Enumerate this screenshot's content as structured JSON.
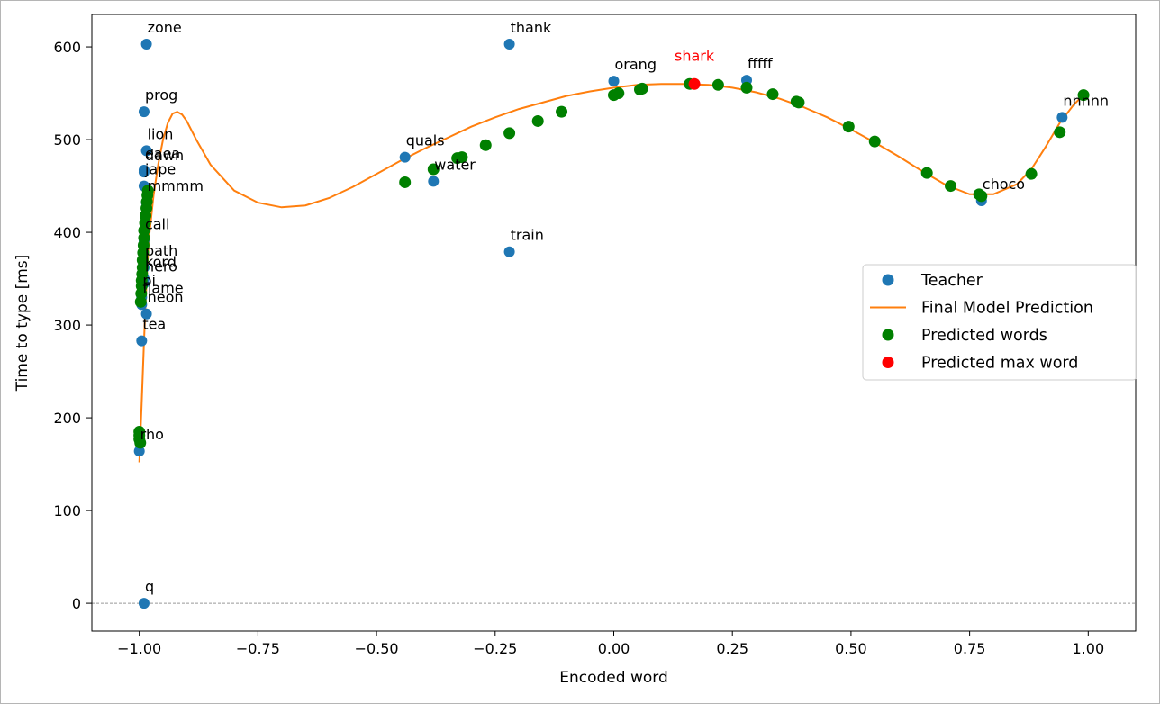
{
  "chart_data": {
    "type": "scatter",
    "title": "",
    "xlabel": "Encoded word",
    "ylabel": "Time to type [ms]",
    "xlim": [
      -1.1,
      1.1
    ],
    "ylim": [
      -30,
      635
    ],
    "xticks": [
      -1.0,
      -0.75,
      -0.5,
      -0.25,
      0.0,
      0.25,
      0.5,
      0.75,
      1.0
    ],
    "xtick_labels": [
      "−1.00",
      "−0.75",
      "−0.50",
      "−0.25",
      "0.00",
      "0.25",
      "0.50",
      "0.75",
      "1.00"
    ],
    "yticks": [
      0,
      100,
      200,
      300,
      400,
      500,
      600
    ],
    "ytick_labels": [
      "0",
      "100",
      "200",
      "300",
      "400",
      "500",
      "600"
    ],
    "colors": {
      "teacher": "#1f77b4",
      "model": "#ff7f0e",
      "predicted": "#008000",
      "max": "#ff0000",
      "axes": "#000000",
      "zero_line": "#999999"
    },
    "legend": {
      "position": "center-right",
      "entries": [
        "Teacher",
        "Final Model Prediction",
        "Predicted words",
        "Predicted max word"
      ]
    },
    "teacher": [
      {
        "x": -0.99,
        "y": 0,
        "label": "q"
      },
      {
        "x": -1.0,
        "y": 164,
        "label": "rho"
      },
      {
        "x": -0.995,
        "y": 283,
        "label": "tea"
      },
      {
        "x": -0.985,
        "y": 312,
        "label": "neon"
      },
      {
        "x": -0.995,
        "y": 322,
        "label": "flame"
      },
      {
        "x": -0.995,
        "y": 330,
        "label": "pi"
      },
      {
        "x": -0.99,
        "y": 345,
        "label": "hero"
      },
      {
        "x": -0.99,
        "y": 350,
        "label": "kord"
      },
      {
        "x": -0.99,
        "y": 362,
        "label": "path"
      },
      {
        "x": -0.99,
        "y": 391,
        "label": "call"
      },
      {
        "x": -0.985,
        "y": 432,
        "label": "mmmm"
      },
      {
        "x": -0.99,
        "y": 450,
        "label": "jape"
      },
      {
        "x": -0.99,
        "y": 465,
        "label": "dawn"
      },
      {
        "x": -0.99,
        "y": 467,
        "label": "eaea"
      },
      {
        "x": -0.985,
        "y": 488,
        "label": "lion"
      },
      {
        "x": -0.99,
        "y": 530,
        "label": "prog"
      },
      {
        "x": -0.985,
        "y": 603,
        "label": "zone"
      },
      {
        "x": -0.22,
        "y": 603,
        "label": "thank"
      },
      {
        "x": -0.44,
        "y": 481,
        "label": "quals"
      },
      {
        "x": -0.38,
        "y": 455,
        "label": "water"
      },
      {
        "x": -0.22,
        "y": 379,
        "label": "train"
      },
      {
        "x": 0.0,
        "y": 563,
        "label": "orang"
      },
      {
        "x": 0.28,
        "y": 564,
        "label": "fffff"
      },
      {
        "x": 0.775,
        "y": 434,
        "label": "choco"
      },
      {
        "x": 0.945,
        "y": 524,
        "label": "nnnnn"
      }
    ],
    "model_curve": {
      "x": [
        -1.0,
        -0.995,
        -0.99,
        -0.985,
        -0.98,
        -0.97,
        -0.96,
        -0.95,
        -0.94,
        -0.93,
        -0.92,
        -0.91,
        -0.9,
        -0.88,
        -0.85,
        -0.8,
        -0.75,
        -0.7,
        -0.65,
        -0.6,
        -0.55,
        -0.5,
        -0.45,
        -0.4,
        -0.35,
        -0.3,
        -0.25,
        -0.2,
        -0.15,
        -0.1,
        -0.05,
        0.0,
        0.05,
        0.1,
        0.15,
        0.2,
        0.25,
        0.3,
        0.35,
        0.4,
        0.45,
        0.5,
        0.55,
        0.6,
        0.65,
        0.7,
        0.75,
        0.8,
        0.85,
        0.88,
        0.91,
        0.94,
        0.97,
        0.99
      ],
      "y": [
        152,
        215,
        285,
        345,
        392,
        440,
        474,
        500,
        518,
        528,
        530,
        527,
        520,
        500,
        473,
        445,
        432,
        427,
        429,
        437,
        449,
        463,
        477,
        490,
        502,
        514,
        524,
        533,
        540,
        547,
        552,
        556,
        559,
        560,
        560,
        559,
        556,
        551,
        544,
        535,
        524,
        511,
        497,
        482,
        466,
        451,
        441,
        441,
        452,
        468,
        492,
        518,
        538,
        548
      ]
    },
    "predicted_words": [
      {
        "x": -1.0,
        "y": 185
      },
      {
        "x": -1.0,
        "y": 181
      },
      {
        "x": -1.0,
        "y": 177
      },
      {
        "x": -0.998,
        "y": 173
      },
      {
        "x": -0.997,
        "y": 325
      },
      {
        "x": -0.996,
        "y": 334
      },
      {
        "x": -0.995,
        "y": 342
      },
      {
        "x": -0.995,
        "y": 348
      },
      {
        "x": -0.994,
        "y": 355
      },
      {
        "x": -0.993,
        "y": 362
      },
      {
        "x": -0.993,
        "y": 370
      },
      {
        "x": -0.992,
        "y": 378
      },
      {
        "x": -0.991,
        "y": 386
      },
      {
        "x": -0.99,
        "y": 394
      },
      {
        "x": -0.99,
        "y": 402
      },
      {
        "x": -0.988,
        "y": 410
      },
      {
        "x": -0.987,
        "y": 418
      },
      {
        "x": -0.985,
        "y": 426
      },
      {
        "x": -0.984,
        "y": 433
      },
      {
        "x": -0.983,
        "y": 440
      },
      {
        "x": -0.982,
        "y": 445
      },
      {
        "x": -0.44,
        "y": 454
      },
      {
        "x": -0.38,
        "y": 468
      },
      {
        "x": -0.33,
        "y": 480
      },
      {
        "x": -0.32,
        "y": 481
      },
      {
        "x": -0.27,
        "y": 494
      },
      {
        "x": -0.22,
        "y": 507
      },
      {
        "x": -0.16,
        "y": 520
      },
      {
        "x": -0.11,
        "y": 530
      },
      {
        "x": 0.0,
        "y": 548
      },
      {
        "x": 0.01,
        "y": 550
      },
      {
        "x": 0.055,
        "y": 554
      },
      {
        "x": 0.06,
        "y": 555
      },
      {
        "x": 0.16,
        "y": 560
      },
      {
        "x": 0.22,
        "y": 559
      },
      {
        "x": 0.28,
        "y": 556
      },
      {
        "x": 0.335,
        "y": 549
      },
      {
        "x": 0.385,
        "y": 541
      },
      {
        "x": 0.39,
        "y": 540
      },
      {
        "x": 0.495,
        "y": 514
      },
      {
        "x": 0.55,
        "y": 498
      },
      {
        "x": 0.66,
        "y": 464
      },
      {
        "x": 0.71,
        "y": 450
      },
      {
        "x": 0.77,
        "y": 441
      },
      {
        "x": 0.775,
        "y": 439
      },
      {
        "x": 0.88,
        "y": 463
      },
      {
        "x": 0.94,
        "y": 508
      },
      {
        "x": 0.99,
        "y": 548
      }
    ],
    "predicted_max": {
      "x": 0.17,
      "y": 560,
      "label": "shark"
    }
  }
}
